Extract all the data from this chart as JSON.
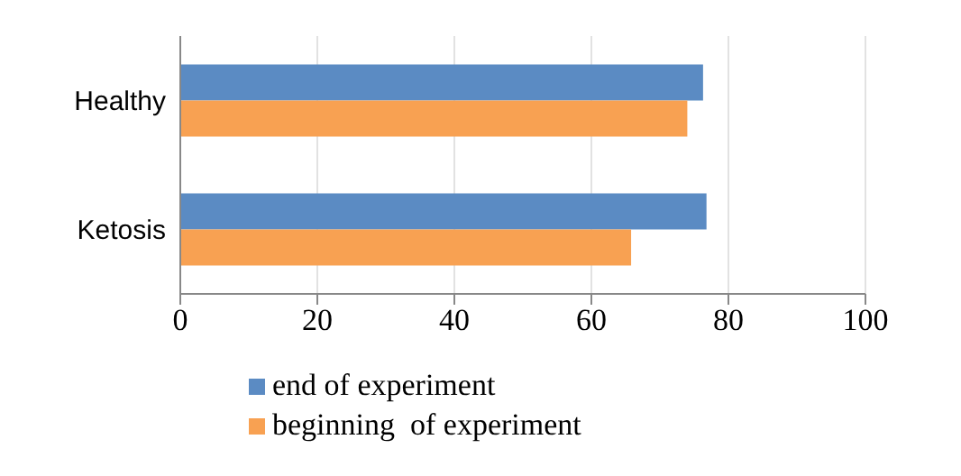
{
  "chart_data": {
    "type": "bar",
    "orientation": "horizontal",
    "categories": [
      "Healthy",
      "Ketosis"
    ],
    "series": [
      {
        "name": "end of experiment",
        "color": "#5b8bc3",
        "values": [
          76.3,
          76.8
        ]
      },
      {
        "name": "beginning  of experiment",
        "color": "#f8a152",
        "values": [
          74.0,
          65.8
        ]
      }
    ],
    "xlim": [
      0,
      100
    ],
    "xticks": [
      0,
      20,
      40,
      60,
      80,
      100
    ],
    "grid": "x",
    "legend": "bottom"
  }
}
